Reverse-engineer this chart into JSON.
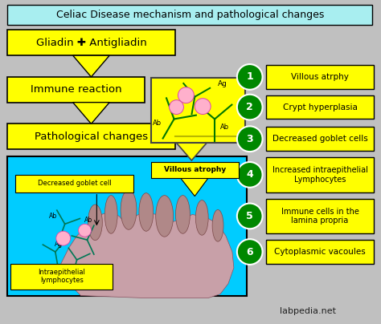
{
  "title": "Celiac Disease mechanism and pathological changes",
  "title_bg": "#a8eef0",
  "background_color": "#c0c0c0",
  "yellow": "#ffff00",
  "cyan": "#00ccff",
  "green_circle": "#008800",
  "watermark": "labpedia.net",
  "right_items": [
    {
      "num": "1",
      "text": "Villous atrphy"
    },
    {
      "num": "2",
      "text": "Crypt hyperplasia"
    },
    {
      "num": "3",
      "text": "Decreased goblet cells"
    },
    {
      "num": "4",
      "text": "Increased intraepithelial\nLymphocytes"
    },
    {
      "num": "5",
      "text": "Immune cells in the\nlamina propria"
    },
    {
      "num": "6",
      "text": "Cytoplasmic vacoules"
    }
  ]
}
